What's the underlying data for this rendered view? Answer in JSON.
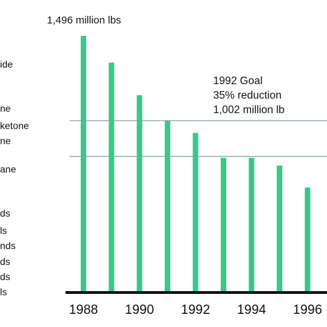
{
  "chart_data": {
    "type": "bar",
    "title": "",
    "xlabel": "",
    "ylabel": "",
    "categories": [
      "1988",
      "1989",
      "1990",
      "1991",
      "1992",
      "1993",
      "1994",
      "1995",
      "1996"
    ],
    "values": [
      1496,
      1340,
      1150,
      1000,
      930,
      785,
      785,
      740,
      612
    ],
    "ylim": [
      0,
      1496
    ],
    "x_tick_labels": [
      "1988",
      "1990",
      "1992",
      "1994",
      "1996"
    ],
    "bar_color": "#3cc68a",
    "grid": false,
    "annotations": {
      "top_value_label": "1,496 million lbs",
      "goal_lines": [
        1002,
        793
      ],
      "goal_text": [
        "1992 Goal",
        "35% reduction",
        "1,002 million lb"
      ]
    },
    "left_legend_fragments": [
      "ide",
      "ne",
      "ketone",
      "ne",
      "ane",
      "ds",
      "ls",
      "nds",
      "ds",
      "ds",
      "ls"
    ]
  }
}
